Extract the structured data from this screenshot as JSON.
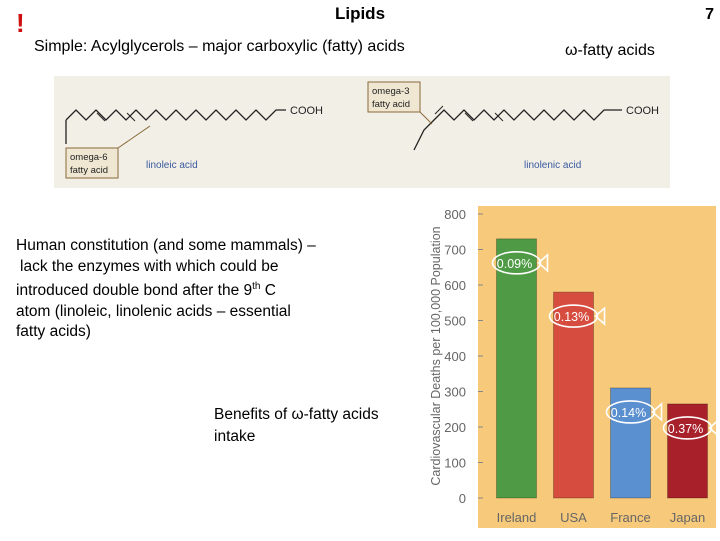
{
  "slide": {
    "title": "Lipids",
    "page_number": "7",
    "alert_mark": "!",
    "subtitle": "Simple: Acylglycerols – major carboxylic (fatty) acids",
    "omega_heading": "ω-fatty acids"
  },
  "structures": {
    "cooh": "COOH",
    "omega6_tag": [
      "omega-6",
      "fatty acid"
    ],
    "omega3_tag": [
      "omega-3",
      "fatty acid"
    ],
    "linoleic": "linoleic acid",
    "linolenic": "linolenic acid"
  },
  "body": {
    "line1": "Human constitution (and some mammals) –",
    "line2": "lack the enzymes with which could be",
    "line3": "introduced double bond after the 9",
    "line3_sup": "th",
    "line3_end": " C",
    "line4": "atom  (linoleic, linolenic acids – essential",
    "line5": "fatty acids)"
  },
  "benefits": {
    "line1": "Benefits of ω-fatty acids",
    "line2": "intake"
  },
  "chart_data": {
    "type": "bar",
    "ylabel": "Cardiovascular Deaths per 100,000 Population",
    "ylim": [
      0,
      800
    ],
    "yticks": [
      "0",
      "100",
      "200",
      "300",
      "400",
      "500",
      "600",
      "700",
      "800"
    ],
    "categories": [
      "Ireland",
      "USA",
      "France",
      "Japan"
    ],
    "values": [
      730,
      580,
      310,
      265
    ],
    "bar_labels": [
      "0.09%",
      "0.13%",
      "0.14%",
      "0.37%"
    ],
    "colors": [
      "#4e9a45",
      "#d64c3f",
      "#5a8fd0",
      "#a8202a"
    ],
    "background": "#f7c97a"
  }
}
